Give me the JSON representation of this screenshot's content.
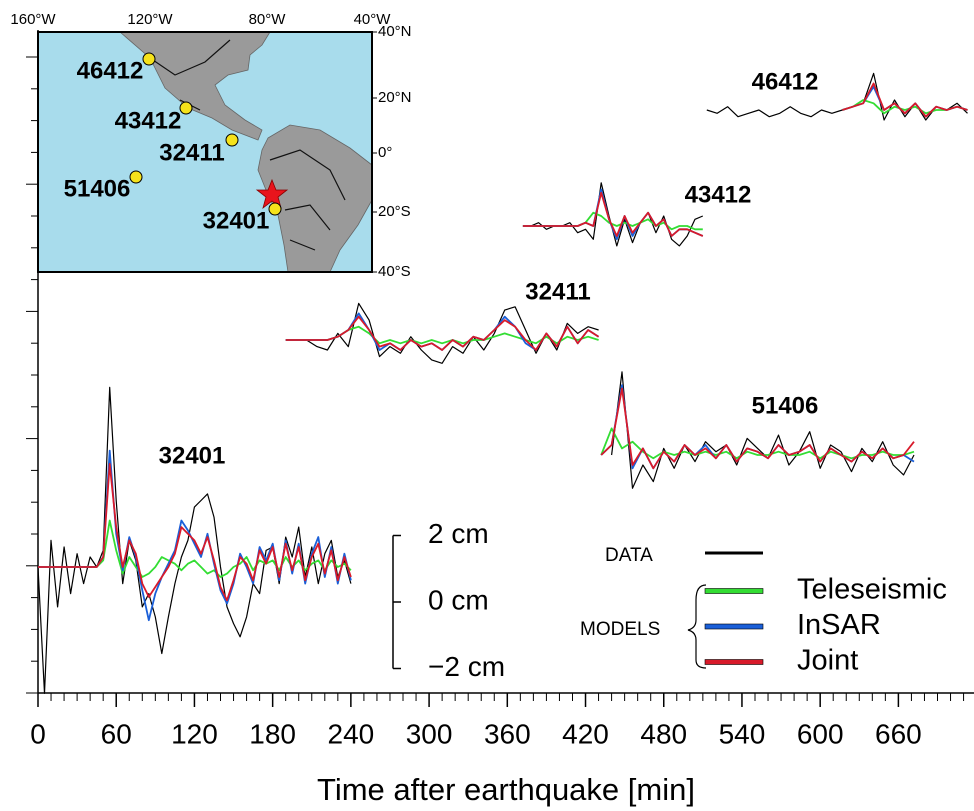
{
  "chart_data": {
    "type": "line",
    "x_label": "Time after earthquake [min]",
    "xlim": [
      0,
      718
    ],
    "xticks": [
      0,
      60,
      120,
      180,
      240,
      300,
      360,
      420,
      480,
      540,
      600,
      660
    ],
    "scale_bar": [
      {
        "value": 2,
        "label": "2 cm"
      },
      {
        "value": 0,
        "label": "0 cm"
      },
      {
        "value": -2,
        "label": "−2 cm"
      }
    ],
    "legend": {
      "data": {
        "name": "DATA",
        "color": "#000000"
      },
      "models_label": "MODELS",
      "models": [
        {
          "name": "Teleseismic",
          "color": "#33dd33"
        },
        {
          "name": "InSAR",
          "color": "#1a5fd8"
        },
        {
          "name": "Joint",
          "color": "#d81a2a"
        }
      ]
    },
    "stations": [
      {
        "name": "32401",
        "x": [
          0,
          5,
          10,
          15,
          20,
          25,
          30,
          35,
          40,
          45,
          50,
          55,
          60,
          65,
          70,
          75,
          80,
          85,
          90,
          95,
          100,
          105,
          110,
          115,
          120,
          125,
          130,
          135,
          140,
          145,
          150,
          155,
          160,
          165,
          170,
          175,
          180,
          185,
          190,
          195,
          200,
          205,
          210,
          215,
          220,
          225,
          230,
          235,
          240
        ],
        "data": [
          0,
          -3.8,
          0.8,
          -1.2,
          0.6,
          -0.8,
          0.4,
          -0.5,
          0.3,
          0,
          0.5,
          5.4,
          2,
          -0.5,
          0.8,
          0.2,
          -1.2,
          -0.8,
          -1.5,
          -2.6,
          -1.5,
          -0.5,
          0.3,
          0.8,
          1.8,
          2,
          2.2,
          1.5,
          0,
          -1.2,
          -1.7,
          -2.1,
          -1.5,
          -0.5,
          -0.8,
          0.5,
          0.6,
          -0.5,
          0.9,
          0.3,
          1.2,
          -0.3,
          0.6,
          -0.5,
          0.4,
          0.8,
          -0.3,
          0.2,
          -0.5
        ],
        "models": [
          [
            0,
            0,
            0,
            0,
            0,
            0,
            0,
            0,
            0,
            0,
            0.2,
            1.4,
            0.5,
            -0.2,
            0.3,
            0,
            -0.3,
            -0.2,
            0,
            0.3,
            0.2,
            0.1,
            -0.1,
            0.1,
            0.2,
            0,
            -0.2,
            -0.1,
            -0.3,
            -0.2,
            0,
            0.1,
            0.3,
            -0.1,
            0.2,
            0.1,
            0.2,
            -0.1,
            0.3,
            0,
            0.2,
            -0.1,
            0.1,
            0.2,
            -0.1,
            0.2,
            0,
            0.1,
            -0.1
          ],
          [
            0,
            0,
            0,
            0,
            0,
            0,
            0,
            0,
            0,
            0,
            0.3,
            3.5,
            1.0,
            -0.1,
            0.9,
            0.3,
            -0.7,
            -1.6,
            -0.8,
            -0.3,
            0.1,
            0.5,
            1.4,
            1.1,
            0.7,
            0.3,
            1.0,
            0.1,
            -0.7,
            -1.1,
            -0.5,
            0.4,
            0.0,
            -0.5,
            0.6,
            0.2,
            0.7,
            -0.4,
            0.8,
            -0.2,
            0.7,
            -0.5,
            0.4,
            0.9,
            -0.3,
            0.6,
            -0.5,
            0.4,
            -0.4
          ],
          [
            0,
            0,
            0,
            0,
            0,
            0,
            0,
            0,
            0,
            0,
            0.3,
            3.1,
            1.2,
            0,
            0.8,
            0.4,
            -0.5,
            -0.9,
            -0.6,
            -0.3,
            0,
            0.4,
            1.2,
            1.0,
            0.8,
            0.4,
            0.9,
            0.2,
            -0.6,
            -1.0,
            -0.4,
            0.3,
            0.1,
            -0.4,
            0.5,
            0.1,
            0.6,
            -0.3,
            0.7,
            -0.1,
            0.6,
            -0.4,
            0.3,
            0.7,
            -0.2,
            0.5,
            -0.4,
            0.3,
            -0.3
          ]
        ]
      },
      {
        "name": "32411",
        "x": [
          190,
          198,
          206,
          214,
          222,
          230,
          238,
          246,
          254,
          262,
          270,
          278,
          286,
          294,
          302,
          310,
          318,
          326,
          334,
          342,
          350,
          358,
          366,
          374,
          382,
          390,
          398,
          406,
          414,
          422,
          430
        ],
        "data": [
          0,
          0,
          0,
          -0.2,
          -0.3,
          0.2,
          -0.2,
          1.1,
          0.6,
          -0.5,
          -0.2,
          -0.4,
          0.1,
          -0.3,
          -0.6,
          -0.7,
          -0.2,
          -0.4,
          0.1,
          -0.3,
          0.2,
          0.9,
          1.0,
          0.3,
          -0.4,
          0.2,
          -0.3,
          0.5,
          0.2,
          0.4,
          0.3
        ],
        "models": [
          [
            0,
            0,
            0,
            0,
            0,
            0.1,
            0.3,
            0.4,
            0.2,
            -0.1,
            0,
            -0.1,
            0,
            -0.1,
            0,
            -0.1,
            0,
            -0.1,
            0,
            0,
            0.1,
            0.2,
            0.1,
            0,
            -0.1,
            0.1,
            -0.1,
            0.1,
            0,
            0.1,
            0
          ],
          [
            0,
            0,
            0,
            0,
            0,
            0.1,
            0.3,
            0.8,
            0.3,
            -0.3,
            -0.1,
            -0.3,
            0,
            -0.2,
            -0.1,
            -0.3,
            0,
            -0.2,
            0.1,
            0,
            0.3,
            0.7,
            0.4,
            -0.1,
            -0.3,
            0.2,
            -0.2,
            0.4,
            -0.1,
            0.3,
            0.1
          ],
          [
            0,
            0,
            0,
            0,
            0,
            0.1,
            0.3,
            0.7,
            0.3,
            -0.2,
            -0.1,
            -0.3,
            0,
            -0.2,
            -0.1,
            -0.3,
            0,
            -0.2,
            0.1,
            0,
            0.3,
            0.6,
            0.4,
            0,
            -0.3,
            0.2,
            -0.2,
            0.4,
            -0.1,
            0.3,
            0.1
          ]
        ]
      },
      {
        "name": "43412",
        "x": [
          372,
          378,
          384,
          390,
          396,
          402,
          408,
          414,
          420,
          426,
          432,
          438,
          444,
          450,
          456,
          462,
          468,
          474,
          480,
          486,
          492,
          498,
          504,
          510
        ],
        "data": [
          0,
          0,
          0.1,
          -0.1,
          0,
          0,
          0.1,
          -0.2,
          -0.1,
          -0.4,
          1.3,
          0.3,
          -0.6,
          0.2,
          -0.5,
          0.1,
          0.4,
          -0.2,
          0.3,
          -0.4,
          -0.6,
          -0.3,
          0.2,
          0.3
        ],
        "models": [
          [
            0,
            0,
            0,
            0,
            0,
            0,
            0,
            0,
            0.1,
            0.4,
            0.3,
            0.1,
            0,
            0.1,
            0,
            0.1,
            0.2,
            0,
            0.1,
            -0.1,
            0,
            0,
            -0.1,
            -0.1
          ],
          [
            0,
            0,
            0,
            0,
            0,
            0,
            0,
            0,
            0.1,
            0,
            1.1,
            0.2,
            -0.4,
            0.3,
            -0.3,
            0.1,
            0.4,
            0,
            0.2,
            -0.3,
            -0.1,
            -0.1,
            -0.2,
            -0.3
          ],
          [
            0,
            0,
            0,
            0,
            0,
            0,
            0,
            0,
            0.1,
            0,
            1.0,
            0.2,
            -0.3,
            0.3,
            -0.2,
            0.1,
            0.4,
            0,
            0.2,
            -0.3,
            -0.1,
            -0.1,
            -0.2,
            -0.3
          ]
        ]
      },
      {
        "name": "51406",
        "x": [
          432,
          440,
          448,
          456,
          464,
          472,
          480,
          488,
          496,
          504,
          512,
          520,
          528,
          536,
          544,
          552,
          560,
          568,
          576,
          584,
          592,
          600,
          608,
          616,
          624,
          632,
          640,
          648,
          656,
          664,
          672
        ],
        "data": [
          null,
          0,
          2.5,
          -1.0,
          -0.3,
          -0.8,
          0.2,
          -0.4,
          0.3,
          -0.2,
          0.4,
          0.1,
          0.3,
          -0.3,
          0.5,
          0.2,
          -0.1,
          0.6,
          -0.3,
          0.1,
          0.7,
          -0.4,
          0.3,
          0.1,
          -0.5,
          0.2,
          -0.2,
          0.4,
          -0.3,
          -0.6,
          0
        ],
        "models": [
          [
            0,
            0.8,
            0.2,
            0.4,
            0.1,
            -0.1,
            0.1,
            0,
            0.1,
            0,
            0.1,
            0,
            0.1,
            -0.1,
            0.1,
            0,
            0,
            0.1,
            0,
            0,
            0.1,
            -0.1,
            0.1,
            0,
            -0.1,
            0,
            0,
            0.1,
            0,
            0,
            0.1
          ],
          [
            0,
            0.3,
            2.1,
            -0.4,
            0.2,
            -0.4,
            0.1,
            -0.2,
            0.3,
            0,
            0.3,
            -0.1,
            0.3,
            -0.2,
            0.2,
            0.1,
            -0.1,
            0.3,
            0,
            0.1,
            0.3,
            -0.2,
            0.2,
            0,
            -0.2,
            0.1,
            -0.1,
            0.2,
            -0.1,
            0,
            -0.2
          ],
          [
            0,
            0.3,
            2.0,
            -0.3,
            0.2,
            -0.4,
            0.1,
            -0.2,
            0.3,
            0,
            0.2,
            -0.1,
            0.3,
            -0.2,
            0.2,
            0.1,
            -0.1,
            0.3,
            0,
            0.1,
            0.3,
            -0.2,
            0.2,
            0,
            -0.2,
            0.1,
            -0.1,
            0.2,
            -0.1,
            0,
            0.4
          ]
        ]
      },
      {
        "name": "46412",
        "x": [
          513,
          521,
          529,
          537,
          545,
          553,
          561,
          569,
          577,
          585,
          593,
          601,
          609,
          617,
          625,
          633,
          641,
          649,
          657,
          665,
          673,
          681,
          689,
          697,
          705,
          713
        ],
        "data": [
          0,
          -0.1,
          0.1,
          -0.2,
          -0.1,
          0,
          -0.2,
          -0.1,
          0.1,
          -0.1,
          -0.2,
          0,
          -0.1,
          0,
          0.1,
          0.2,
          1.1,
          -0.3,
          0.3,
          -0.2,
          0.2,
          -0.3,
          0.1,
          0,
          0.2,
          -0.1
        ],
        "models": [
          [
            null,
            null,
            null,
            null,
            null,
            null,
            null,
            null,
            null,
            null,
            null,
            null,
            null,
            0,
            0.1,
            0.3,
            0.2,
            -0.1,
            0.1,
            0,
            0.1,
            -0.1,
            0,
            0,
            0.1,
            0
          ],
          [
            null,
            null,
            null,
            null,
            null,
            null,
            null,
            null,
            null,
            null,
            null,
            null,
            null,
            0,
            0.1,
            0.2,
            0.7,
            0,
            0.2,
            -0.1,
            0.2,
            -0.2,
            0.1,
            0,
            0.1,
            0
          ],
          [
            null,
            null,
            null,
            null,
            null,
            null,
            null,
            null,
            null,
            null,
            null,
            null,
            null,
            0,
            0.1,
            0.2,
            0.8,
            0,
            0.2,
            -0.1,
            0.2,
            -0.2,
            0.1,
            0,
            0.1,
            0
          ]
        ]
      }
    ],
    "map": {
      "lon_ticks": [
        "160°W",
        "120°W",
        "80°W",
        "40°W"
      ],
      "lat_ticks": [
        "40°N",
        "20°N",
        "0°",
        "20°S",
        "40°S"
      ],
      "stations": [
        "46412",
        "43412",
        "32411",
        "51406",
        "32401"
      ]
    }
  }
}
